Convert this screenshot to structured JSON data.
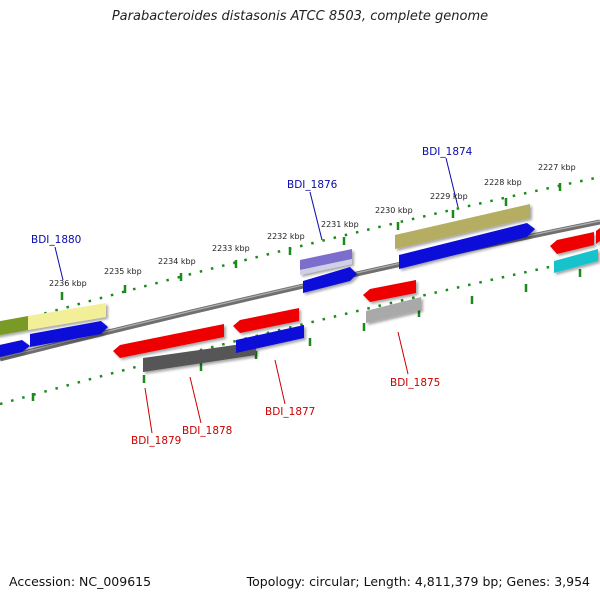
{
  "title": "Parabacteroides distasonis ATCC 8503, complete genome",
  "footer": {
    "accession": "Accession: NC_009615",
    "topology": "Topology: circular; Length: 4,811,379 bp; Genes: 3,954"
  },
  "colors": {
    "tick": "#1a8a1a",
    "backbone": "#777777",
    "forward_label": "#0a0aaa",
    "reverse_label": "#cc0000"
  },
  "scale_labels": [
    "2236 kbp",
    "2235 kbp",
    "2234 kbp",
    "2233 kbp",
    "2232 kbp",
    "2231 kbp",
    "2230 kbp",
    "2229 kbp",
    "2228 kbp",
    "2227 kbp"
  ],
  "gene_labels": {
    "bdi_1880": "BDI_1880",
    "bdi_1876": "BDI_1876",
    "bdi_1874": "BDI_1874",
    "bdi_1875": "BDI_1875",
    "bdi_1877": "BDI_1877",
    "bdi_1878": "BDI_1878",
    "bdi_1879": "BDI_1879"
  }
}
